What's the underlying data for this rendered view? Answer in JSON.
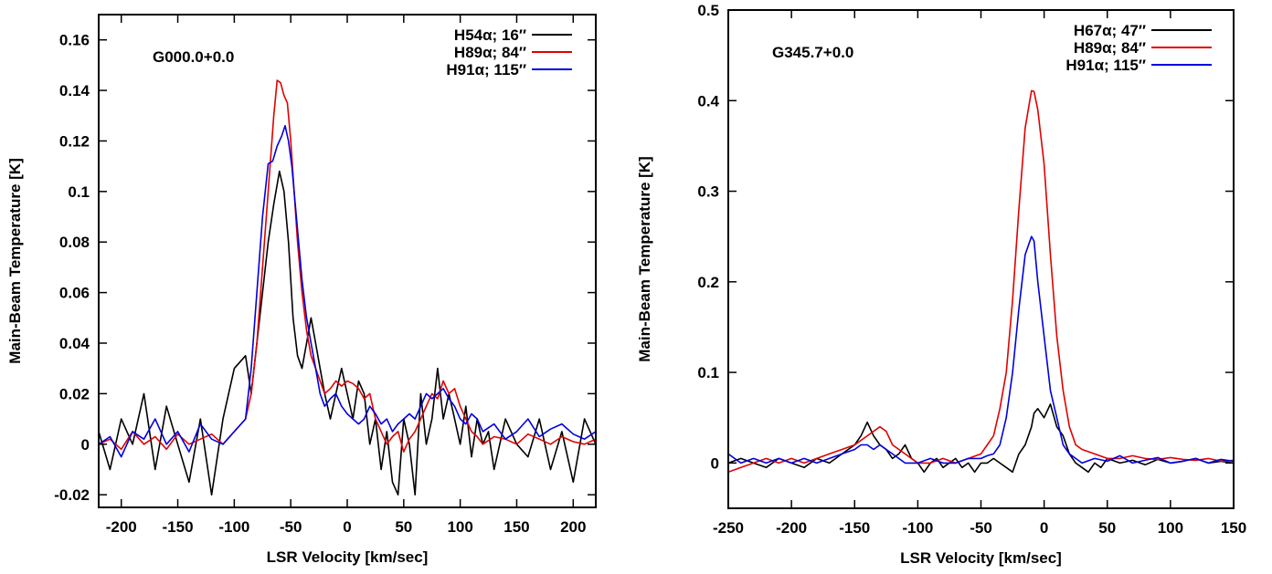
{
  "chart_data": [
    {
      "type": "line",
      "xlabel": "LSR Velocity [km/sec]",
      "ylabel": "Main-Beam Temperature [K]",
      "xlim": [
        -220,
        220
      ],
      "ylim": [
        -0.025,
        0.17
      ],
      "xticks": [
        -200,
        -150,
        -100,
        -50,
        0,
        50,
        100,
        150,
        200
      ],
      "xtick_labels": [
        "-200",
        "-150",
        "-100",
        "-50",
        "0",
        "50",
        "100",
        "150",
        "200"
      ],
      "yticks": [
        -0.02,
        0,
        0.02,
        0.04,
        0.06,
        0.08,
        0.1,
        0.12,
        0.14,
        0.16
      ],
      "ytick_labels": [
        "-0.02",
        "0",
        "0.02",
        "0.04",
        "0.06",
        "0.08",
        "0.1",
        "0.12",
        "0.14",
        "0.16"
      ],
      "annotation": "G000.0+0.0",
      "legend_position": "top-right",
      "series": [
        {
          "name": "H54α; 16″",
          "color": "#000000",
          "x": [
            -220,
            -210,
            -200,
            -190,
            -180,
            -170,
            -160,
            -150,
            -140,
            -130,
            -120,
            -110,
            -100,
            -90,
            -85,
            -80,
            -75,
            -70,
            -65,
            -60,
            -56,
            -52,
            -48,
            -44,
            -40,
            -36,
            -32,
            -28,
            -24,
            -20,
            -15,
            -10,
            -5,
            0,
            5,
            10,
            15,
            20,
            25,
            30,
            35,
            40,
            45,
            50,
            55,
            60,
            65,
            70,
            75,
            80,
            85,
            90,
            95,
            100,
            105,
            110,
            115,
            120,
            125,
            130,
            140,
            150,
            160,
            170,
            180,
            190,
            200,
            210,
            220
          ],
          "y": [
            0.005,
            -0.01,
            0.01,
            0.0,
            0.02,
            -0.01,
            0.015,
            0.0,
            -0.015,
            0.01,
            -0.02,
            0.01,
            0.03,
            0.035,
            0.02,
            0.04,
            0.06,
            0.08,
            0.095,
            0.108,
            0.1,
            0.08,
            0.05,
            0.035,
            0.03,
            0.04,
            0.05,
            0.04,
            0.03,
            0.02,
            0.01,
            0.02,
            0.03,
            0.02,
            0.01,
            0.025,
            0.02,
            0.0,
            0.01,
            -0.01,
            0.005,
            -0.015,
            -0.02,
            0.01,
            0.0,
            -0.02,
            0.02,
            0.0,
            0.01,
            0.03,
            0.01,
            0.02,
            0.01,
            0.0,
            0.015,
            -0.005,
            0.01,
            0.0,
            0.005,
            -0.01,
            0.01,
            0.0,
            -0.005,
            0.01,
            -0.01,
            0.005,
            -0.015,
            0.01,
            0.0
          ]
        },
        {
          "name": "H89α; 84″",
          "color": "#e00000",
          "x": [
            -220,
            -210,
            -200,
            -190,
            -180,
            -170,
            -160,
            -150,
            -140,
            -130,
            -120,
            -110,
            -100,
            -90,
            -85,
            -80,
            -75,
            -70,
            -65,
            -62,
            -59,
            -56,
            -53,
            -50,
            -47,
            -44,
            -40,
            -36,
            -32,
            -28,
            -24,
            -20,
            -15,
            -10,
            -5,
            0,
            5,
            10,
            15,
            20,
            25,
            30,
            35,
            40,
            45,
            50,
            55,
            60,
            65,
            70,
            75,
            80,
            85,
            90,
            95,
            100,
            105,
            110,
            115,
            120,
            130,
            140,
            150,
            160,
            170,
            180,
            190,
            200,
            210,
            220
          ],
          "y": [
            0.0,
            0.002,
            -0.002,
            0.005,
            0.0,
            0.003,
            -0.002,
            0.004,
            0.0,
            0.002,
            0.004,
            0.0,
            0.005,
            0.01,
            0.02,
            0.04,
            0.07,
            0.1,
            0.13,
            0.144,
            0.143,
            0.138,
            0.135,
            0.12,
            0.1,
            0.08,
            0.06,
            0.045,
            0.035,
            0.03,
            0.025,
            0.02,
            0.022,
            0.025,
            0.023,
            0.025,
            0.024,
            0.022,
            0.018,
            0.02,
            0.01,
            0.005,
            0.0,
            0.003,
            0.005,
            -0.003,
            0.002,
            0.005,
            0.01,
            0.015,
            0.02,
            0.018,
            0.025,
            0.02,
            0.022,
            0.015,
            0.01,
            0.005,
            0.003,
            0.0,
            0.003,
            0.002,
            0.0,
            0.004,
            0.002,
            0.0,
            0.003,
            0.001,
            0.0,
            0.002
          ]
        },
        {
          "name": "H91α; 115″",
          "color": "#0000e0",
          "x": [
            -220,
            -210,
            -200,
            -190,
            -180,
            -170,
            -160,
            -150,
            -140,
            -130,
            -120,
            -110,
            -100,
            -90,
            -85,
            -80,
            -75,
            -70,
            -66,
            -62,
            -58,
            -55,
            -52,
            -49,
            -46,
            -43,
            -40,
            -36,
            -32,
            -28,
            -24,
            -20,
            -15,
            -10,
            -5,
            0,
            5,
            10,
            15,
            20,
            25,
            30,
            35,
            40,
            45,
            50,
            55,
            60,
            65,
            70,
            75,
            80,
            85,
            90,
            95,
            100,
            105,
            110,
            115,
            120,
            130,
            140,
            150,
            160,
            170,
            180,
            190,
            200,
            210,
            220
          ],
          "y": [
            0.0,
            0.003,
            -0.005,
            0.005,
            0.002,
            0.01,
            0.0,
            0.005,
            -0.003,
            0.008,
            0.002,
            0.0,
            0.005,
            0.01,
            0.03,
            0.06,
            0.09,
            0.111,
            0.112,
            0.118,
            0.122,
            0.126,
            0.12,
            0.11,
            0.095,
            0.08,
            0.065,
            0.05,
            0.04,
            0.03,
            0.02,
            0.015,
            0.018,
            0.02,
            0.015,
            0.012,
            0.01,
            0.008,
            0.01,
            0.015,
            0.012,
            0.008,
            0.01,
            0.005,
            0.008,
            0.01,
            0.012,
            0.01,
            0.015,
            0.02,
            0.018,
            0.02,
            0.022,
            0.018,
            0.015,
            0.01,
            0.008,
            0.012,
            0.01,
            0.005,
            0.008,
            0.002,
            0.005,
            0.01,
            0.003,
            0.006,
            0.008,
            0.004,
            0.002,
            0.005
          ]
        }
      ]
    },
    {
      "type": "line",
      "xlabel": "LSR Velocity [km/sec]",
      "ylabel": "Main-Beam Temperature [K]",
      "xlim": [
        -250,
        150
      ],
      "ylim": [
        -0.05,
        0.5
      ],
      "xticks": [
        -250,
        -200,
        -150,
        -100,
        -50,
        0,
        50,
        100,
        150
      ],
      "xtick_labels": [
        "-250",
        "-200",
        "-150",
        "-100",
        "-50",
        "0",
        "50",
        "100",
        "150"
      ],
      "yticks": [
        0,
        0.1,
        0.2,
        0.3,
        0.4,
        0.5
      ],
      "ytick_labels": [
        "0",
        "0.1",
        "0.2",
        "0.3",
        "0.4",
        "0.5"
      ],
      "annotation": "G345.7+0.0",
      "legend_position": "top-right",
      "series": [
        {
          "name": "H67α; 47″",
          "color": "#000000",
          "x": [
            -250,
            -240,
            -230,
            -220,
            -210,
            -200,
            -190,
            -180,
            -170,
            -160,
            -150,
            -145,
            -140,
            -135,
            -130,
            -125,
            -120,
            -115,
            -110,
            -105,
            -100,
            -95,
            -90,
            -85,
            -80,
            -75,
            -70,
            -65,
            -60,
            -55,
            -50,
            -45,
            -40,
            -35,
            -30,
            -25,
            -20,
            -15,
            -10,
            -8,
            -5,
            0,
            5,
            10,
            15,
            20,
            25,
            30,
            35,
            40,
            45,
            50,
            60,
            70,
            80,
            90,
            100,
            110,
            120,
            130,
            140,
            150
          ],
          "y": [
            0.0,
            0.005,
            0.0,
            -0.005,
            0.005,
            0.0,
            -0.005,
            0.005,
            0.0,
            0.01,
            0.02,
            0.03,
            0.045,
            0.03,
            0.02,
            0.015,
            0.005,
            0.01,
            0.02,
            0.005,
            0.0,
            -0.01,
            0.0,
            0.005,
            -0.005,
            0.0,
            0.005,
            -0.005,
            0.0,
            -0.01,
            0.0,
            0.0,
            0.005,
            0.0,
            -0.005,
            -0.01,
            0.01,
            0.02,
            0.04,
            0.055,
            0.06,
            0.05,
            0.065,
            0.04,
            0.03,
            0.01,
            0.0,
            -0.005,
            -0.01,
            0.0,
            -0.005,
            0.005,
            0.0,
            0.003,
            -0.002,
            0.004,
            0.0,
            0.002,
            0.005,
            0.0,
            0.002,
            0.0
          ]
        },
        {
          "name": "H89α; 84″",
          "color": "#e00000",
          "x": [
            -250,
            -240,
            -230,
            -220,
            -210,
            -200,
            -190,
            -180,
            -170,
            -160,
            -150,
            -140,
            -135,
            -130,
            -125,
            -120,
            -110,
            -100,
            -90,
            -80,
            -70,
            -60,
            -50,
            -45,
            -40,
            -35,
            -30,
            -25,
            -20,
            -15,
            -10,
            -8,
            -5,
            0,
            5,
            10,
            15,
            20,
            25,
            30,
            40,
            50,
            60,
            70,
            80,
            90,
            100,
            110,
            120,
            130,
            140,
            150
          ],
          "y": [
            -0.01,
            -0.005,
            0.0,
            0.005,
            0.0,
            0.005,
            0.0,
            0.005,
            0.01,
            0.015,
            0.02,
            0.03,
            0.035,
            0.04,
            0.035,
            0.02,
            0.01,
            0.0,
            0.0,
            0.005,
            0.0,
            0.005,
            0.01,
            0.02,
            0.03,
            0.06,
            0.1,
            0.18,
            0.28,
            0.37,
            0.411,
            0.41,
            0.39,
            0.33,
            0.23,
            0.14,
            0.08,
            0.04,
            0.02,
            0.015,
            0.01,
            0.005,
            0.005,
            0.008,
            0.005,
            0.004,
            0.006,
            0.004,
            0.003,
            0.005,
            0.002,
            0.003
          ]
        },
        {
          "name": "H91α; 115″",
          "color": "#0000e0",
          "x": [
            -250,
            -240,
            -230,
            -220,
            -210,
            -200,
            -190,
            -180,
            -170,
            -160,
            -150,
            -145,
            -140,
            -135,
            -130,
            -125,
            -120,
            -110,
            -100,
            -90,
            -80,
            -70,
            -60,
            -50,
            -45,
            -40,
            -35,
            -30,
            -25,
            -20,
            -15,
            -10,
            -8,
            -5,
            0,
            5,
            10,
            15,
            20,
            25,
            30,
            40,
            50,
            60,
            70,
            80,
            90,
            100,
            110,
            120,
            130,
            140,
            150
          ],
          "y": [
            0.01,
            0.0,
            0.005,
            0.0,
            0.005,
            0.0,
            0.005,
            0.0,
            0.005,
            0.01,
            0.015,
            0.02,
            0.02,
            0.015,
            0.02,
            0.015,
            0.01,
            0.0,
            0.0,
            0.005,
            0.0,
            0.0,
            0.005,
            0.005,
            0.008,
            0.01,
            0.02,
            0.05,
            0.1,
            0.17,
            0.23,
            0.25,
            0.245,
            0.2,
            0.14,
            0.08,
            0.05,
            0.02,
            0.01,
            0.005,
            0.0,
            0.005,
            0.002,
            0.008,
            0.0,
            0.003,
            0.006,
            0.0,
            0.002,
            0.005,
            0.0,
            0.004,
            0.002
          ]
        }
      ]
    }
  ]
}
